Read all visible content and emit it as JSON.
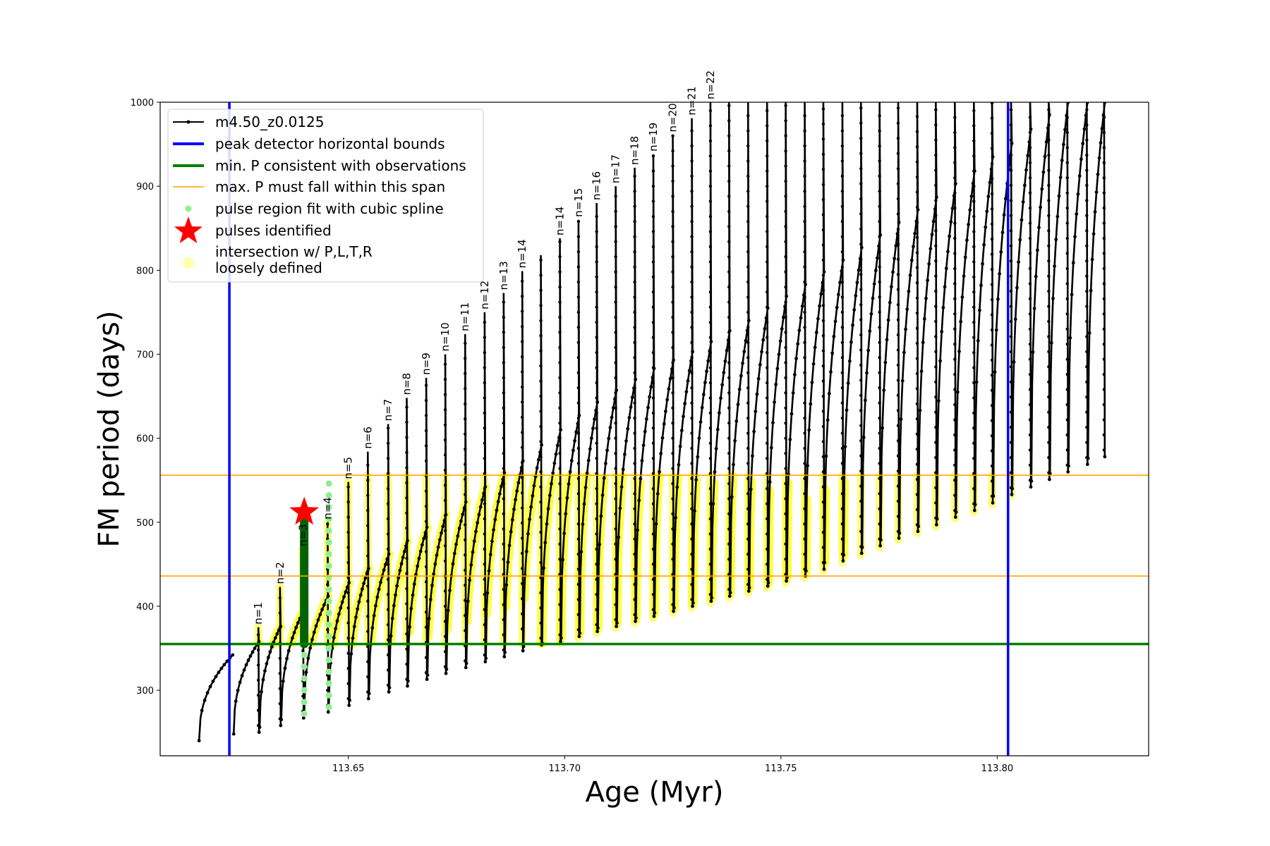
{
  "chart_data": {
    "type": "line",
    "xlabel": "Age (Myr)",
    "ylabel": "FM period (days)",
    "xlim": [
      113.6065,
      113.835
    ],
    "ylim": [
      222,
      1000
    ],
    "x_ticks": [
      113.65,
      113.7,
      113.75,
      113.8
    ],
    "x_tick_labels": [
      "113.65",
      "113.70",
      "113.75",
      "113.80"
    ],
    "y_ticks": [
      300,
      400,
      500,
      600,
      700,
      800,
      900,
      1000
    ],
    "y_tick_labels": [
      "300",
      "400",
      "500",
      "600",
      "700",
      "800",
      "900",
      "1000"
    ],
    "grid": false,
    "legend_position": "upper-left",
    "legend": [
      {
        "label": "m4.50_z0.0125",
        "color": "#000000",
        "kind": "line-dot"
      },
      {
        "label": "peak detector horizontal bounds",
        "color": "#0000ff",
        "kind": "thick-line"
      },
      {
        "label": "min. P consistent with observations",
        "color": "#008000",
        "kind": "thick-line"
      },
      {
        "label": "max. P must fall within this span",
        "color": "#ffa500",
        "kind": "thin-line"
      },
      {
        "label": "pulse region fit with cubic spline",
        "color": "#90ee90",
        "kind": "dot"
      },
      {
        "label": "pulses identified",
        "color": "#ff0000",
        "kind": "star"
      },
      {
        "label": "intersection w/ P,L,T,R",
        "label2": "loosely defined",
        "color": "#ffff99",
        "kind": "big-dot"
      }
    ],
    "vertical_bounds": [
      113.6225,
      113.8025
    ],
    "min_period_line": 355,
    "max_period_span": [
      436,
      556
    ],
    "pulse_identified": {
      "x": 113.6398,
      "y": 512
    },
    "spline_fits": [
      {
        "x": 113.6398,
        "y_min": 272,
        "y_max": 500
      },
      {
        "x": 113.6455,
        "y_min": 280,
        "y_max": 548
      }
    ],
    "green_segment": {
      "x": 113.6398,
      "y_min": 355,
      "y_max": 500
    },
    "series": {
      "name": "m4.50_z0.0125",
      "pulses": [
        {
          "label": "",
          "x_start": 113.6155,
          "x_end": 113.6235,
          "floor": 240,
          "arc_top": 342,
          "spike": null
        },
        {
          "label": "n=1",
          "x_start": 113.6235,
          "x_end": 113.6295,
          "floor": 248,
          "arc_top": 358,
          "spike": 375
        },
        {
          "label": "n=2",
          "x_start": 113.6295,
          "x_end": 113.6345,
          "floor": 256,
          "arc_top": 376,
          "spike": 423
        },
        {
          "label": "n=3",
          "x_start": 113.6345,
          "x_end": 113.6398,
          "floor": 265,
          "arc_top": 395,
          "spike": 468
        },
        {
          "label": "n=4",
          "x_start": 113.6398,
          "x_end": 113.6455,
          "floor": 272,
          "arc_top": 412,
          "spike": 500
        },
        {
          "label": "n=5",
          "x_start": 113.6455,
          "x_end": 113.6503,
          "floor": 280,
          "arc_top": 428,
          "spike": 548
        },
        {
          "label": "n=6",
          "x_start": 113.6503,
          "x_end": 113.6548,
          "floor": 288,
          "arc_top": 445,
          "spike": 584
        },
        {
          "label": "n=7",
          "x_start": 113.6548,
          "x_end": 113.6595,
          "floor": 296,
          "arc_top": 462,
          "spike": 617
        },
        {
          "label": "n=8",
          "x_start": 113.6595,
          "x_end": 113.6638,
          "floor": 303,
          "arc_top": 478,
          "spike": 648
        },
        {
          "label": "n=9",
          "x_start": 113.6638,
          "x_end": 113.6683,
          "floor": 311,
          "arc_top": 494,
          "spike": 672
        },
        {
          "label": "n=10",
          "x_start": 113.6683,
          "x_end": 113.6727,
          "floor": 318,
          "arc_top": 509,
          "spike": 700
        },
        {
          "label": "n=11",
          "x_start": 113.6727,
          "x_end": 113.6773,
          "floor": 325,
          "arc_top": 524,
          "spike": 724
        },
        {
          "label": "n=12",
          "x_start": 113.6773,
          "x_end": 113.6818,
          "floor": 332,
          "arc_top": 542,
          "spike": 750
        },
        {
          "label": "n=13",
          "x_start": 113.6818,
          "x_end": 113.6862,
          "floor": 338,
          "arc_top": 559,
          "spike": 773
        },
        {
          "label": "n=14",
          "x_start": 113.6862,
          "x_end": 113.6905,
          "floor": 345,
          "arc_top": 573,
          "spike": 799
        },
        {
          "label": "",
          "x_start": 113.6905,
          "x_end": 113.6948,
          "floor": 352,
          "arc_top": 592,
          "spike": 818
        },
        {
          "label": "n=14",
          "x_start": 113.6948,
          "x_end": 113.6992,
          "floor": 356,
          "arc_top": 610,
          "spike": 838
        },
        {
          "label": "n=15",
          "x_start": 113.6992,
          "x_end": 113.7035,
          "floor": 362,
          "arc_top": 627,
          "spike": 860
        },
        {
          "label": "n=16",
          "x_start": 113.7035,
          "x_end": 113.7077,
          "floor": 368,
          "arc_top": 643,
          "spike": 880
        },
        {
          "label": "n=17",
          "x_start": 113.7077,
          "x_end": 113.7121,
          "floor": 374,
          "arc_top": 657,
          "spike": 900
        },
        {
          "label": "n=18",
          "x_start": 113.7121,
          "x_end": 113.7165,
          "floor": 380,
          "arc_top": 670,
          "spike": 922
        },
        {
          "label": "n=19",
          "x_start": 113.7165,
          "x_end": 113.7208,
          "floor": 386,
          "arc_top": 683,
          "spike": 938
        },
        {
          "label": "n=20",
          "x_start": 113.7208,
          "x_end": 113.7253,
          "floor": 392,
          "arc_top": 693,
          "spike": 961
        },
        {
          "label": "n=21",
          "x_start": 113.7253,
          "x_end": 113.7297,
          "floor": 398,
          "arc_top": 703,
          "spike": 981
        },
        {
          "label": "n=22",
          "x_start": 113.7297,
          "x_end": 113.734,
          "floor": 404,
          "arc_top": 715,
          "spike": 1000
        },
        {
          "label": "",
          "x_start": 113.734,
          "x_end": 113.7383,
          "floor": 410,
          "arc_top": 728,
          "spike": 1000
        },
        {
          "label": "",
          "x_start": 113.7383,
          "x_end": 113.7427,
          "floor": 416,
          "arc_top": 740,
          "spike": 1000
        },
        {
          "label": "",
          "x_start": 113.7427,
          "x_end": 113.7471,
          "floor": 422,
          "arc_top": 755,
          "spike": 1000
        },
        {
          "label": "",
          "x_start": 113.7471,
          "x_end": 113.7514,
          "floor": 428,
          "arc_top": 769,
          "spike": 1000
        },
        {
          "label": "",
          "x_start": 113.7514,
          "x_end": 113.7558,
          "floor": 434,
          "arc_top": 783,
          "spike": 1000
        },
        {
          "label": "",
          "x_start": 113.7558,
          "x_end": 113.7601,
          "floor": 442,
          "arc_top": 798,
          "spike": 1000
        },
        {
          "label": "",
          "x_start": 113.7601,
          "x_end": 113.7645,
          "floor": 452,
          "arc_top": 812,
          "spike": 1000
        },
        {
          "label": "",
          "x_start": 113.7645,
          "x_end": 113.7688,
          "floor": 461,
          "arc_top": 827,
          "spike": 1000
        },
        {
          "label": "",
          "x_start": 113.7688,
          "x_end": 113.7731,
          "floor": 470,
          "arc_top": 842,
          "spike": 1000
        },
        {
          "label": "",
          "x_start": 113.7731,
          "x_end": 113.7774,
          "floor": 479,
          "arc_top": 857,
          "spike": 1000
        },
        {
          "label": "",
          "x_start": 113.7774,
          "x_end": 113.7818,
          "floor": 487,
          "arc_top": 872,
          "spike": 1000
        },
        {
          "label": "",
          "x_start": 113.7818,
          "x_end": 113.7861,
          "floor": 495,
          "arc_top": 887,
          "spike": 1000
        },
        {
          "label": "",
          "x_start": 113.7861,
          "x_end": 113.7905,
          "floor": 504,
          "arc_top": 903,
          "spike": 1000
        },
        {
          "label": "",
          "x_start": 113.7905,
          "x_end": 113.7949,
          "floor": 512,
          "arc_top": 918,
          "spike": 1000
        },
        {
          "label": "",
          "x_start": 113.7949,
          "x_end": 113.7991,
          "floor": 521,
          "arc_top": 935,
          "spike": 1000
        },
        {
          "label": "",
          "x_start": 113.7991,
          "x_end": 113.8035,
          "floor": 531,
          "arc_top": 951,
          "spike": 1000
        },
        {
          "label": "",
          "x_start": 113.8035,
          "x_end": 113.8079,
          "floor": 540,
          "arc_top": 968,
          "spike": 1000
        },
        {
          "label": "",
          "x_start": 113.8079,
          "x_end": 113.8122,
          "floor": 549,
          "arc_top": 985,
          "spike": 1000
        },
        {
          "label": "",
          "x_start": 113.8122,
          "x_end": 113.8165,
          "floor": 558,
          "arc_top": 1000,
          "spike": 1000
        },
        {
          "label": "",
          "x_start": 113.8165,
          "x_end": 113.821,
          "floor": 567,
          "arc_top": 1000,
          "spike": 1000
        },
        {
          "label": "",
          "x_start": 113.821,
          "x_end": 113.825,
          "floor": 576,
          "arc_top": 1000,
          "spike": 1000
        }
      ]
    }
  }
}
